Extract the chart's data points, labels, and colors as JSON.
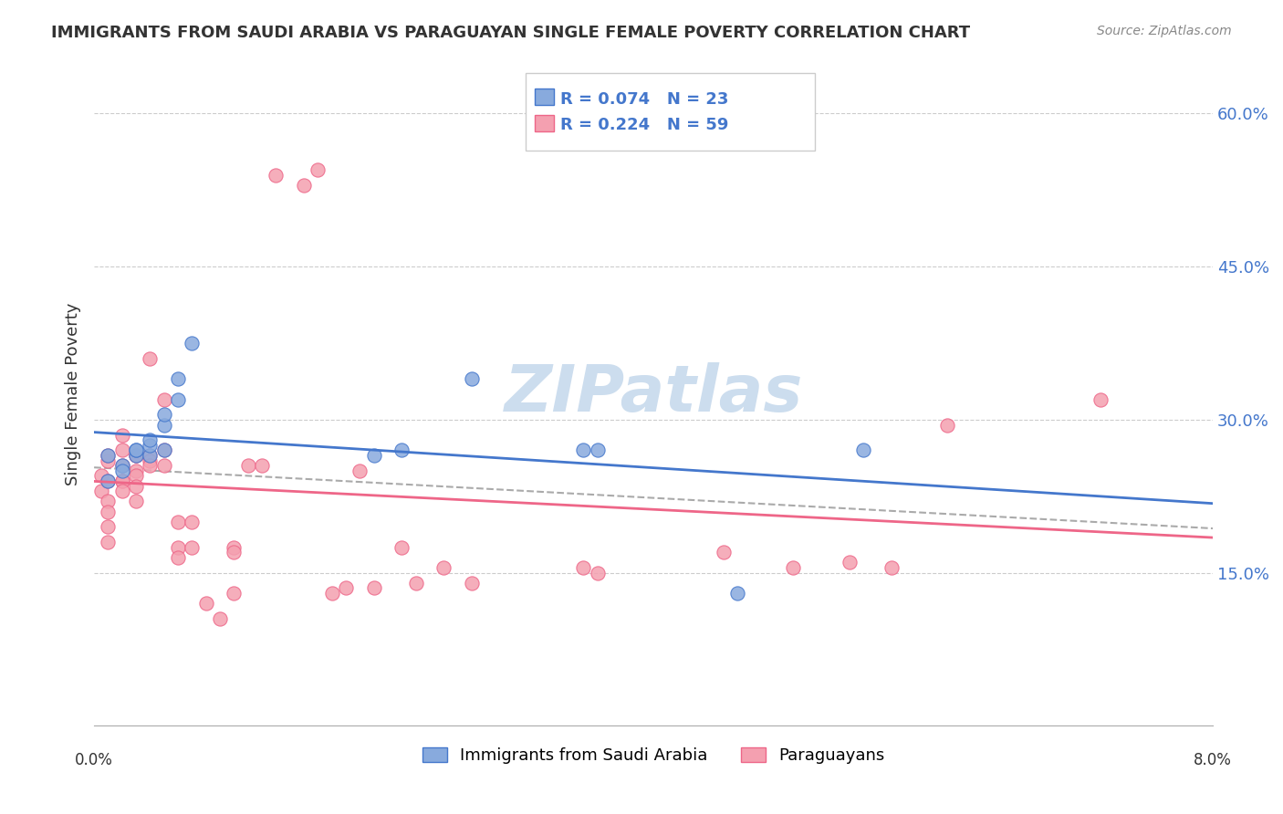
{
  "title": "IMMIGRANTS FROM SAUDI ARABIA VS PARAGUAYAN SINGLE FEMALE POVERTY CORRELATION CHART",
  "source": "Source: ZipAtlas.com",
  "ylabel": "Single Female Poverty",
  "y_ticks": [
    0.15,
    0.3,
    0.45,
    0.6
  ],
  "y_tick_labels": [
    "15.0%",
    "30.0%",
    "45.0%",
    "60.0%"
  ],
  "legend_label_blue": "Immigrants from Saudi Arabia",
  "legend_label_pink": "Paraguayans",
  "r_blue": "R = 0.074",
  "n_blue": "N = 23",
  "r_pink": "R = 0.224",
  "n_pink": "N = 59",
  "color_blue": "#88AADD",
  "color_pink": "#F4A0B0",
  "color_blue_line": "#4477CC",
  "color_pink_line": "#EE6688",
  "watermark_color": "#CCDDEE",
  "blue_x": [
    0.001,
    0.001,
    0.002,
    0.002,
    0.003,
    0.003,
    0.003,
    0.004,
    0.004,
    0.004,
    0.005,
    0.005,
    0.005,
    0.006,
    0.006,
    0.007,
    0.02,
    0.022,
    0.027,
    0.035,
    0.036,
    0.046,
    0.055
  ],
  "blue_y": [
    0.265,
    0.24,
    0.255,
    0.25,
    0.265,
    0.27,
    0.27,
    0.265,
    0.275,
    0.28,
    0.27,
    0.295,
    0.305,
    0.32,
    0.34,
    0.375,
    0.265,
    0.27,
    0.34,
    0.27,
    0.27,
    0.13,
    0.27
  ],
  "pink_x": [
    0.0005,
    0.0005,
    0.001,
    0.001,
    0.001,
    0.001,
    0.001,
    0.001,
    0.001,
    0.002,
    0.002,
    0.002,
    0.002,
    0.002,
    0.002,
    0.003,
    0.003,
    0.003,
    0.003,
    0.003,
    0.003,
    0.004,
    0.004,
    0.004,
    0.004,
    0.005,
    0.005,
    0.005,
    0.006,
    0.006,
    0.006,
    0.007,
    0.007,
    0.008,
    0.009,
    0.01,
    0.01,
    0.01,
    0.011,
    0.012,
    0.013,
    0.015,
    0.016,
    0.017,
    0.018,
    0.019,
    0.02,
    0.022,
    0.023,
    0.025,
    0.027,
    0.035,
    0.036,
    0.045,
    0.05,
    0.054,
    0.057,
    0.061,
    0.072
  ],
  "pink_y": [
    0.23,
    0.245,
    0.24,
    0.26,
    0.265,
    0.22,
    0.21,
    0.195,
    0.18,
    0.285,
    0.27,
    0.255,
    0.24,
    0.24,
    0.23,
    0.265,
    0.265,
    0.25,
    0.245,
    0.235,
    0.22,
    0.36,
    0.265,
    0.26,
    0.255,
    0.32,
    0.27,
    0.255,
    0.2,
    0.175,
    0.165,
    0.2,
    0.175,
    0.12,
    0.105,
    0.175,
    0.17,
    0.13,
    0.255,
    0.255,
    0.54,
    0.53,
    0.545,
    0.13,
    0.135,
    0.25,
    0.135,
    0.175,
    0.14,
    0.155,
    0.14,
    0.155,
    0.15,
    0.17,
    0.155,
    0.16,
    0.155,
    0.295,
    0.32
  ],
  "xmin": 0.0,
  "xmax": 0.08,
  "ymin": 0.0,
  "ymax": 0.65
}
